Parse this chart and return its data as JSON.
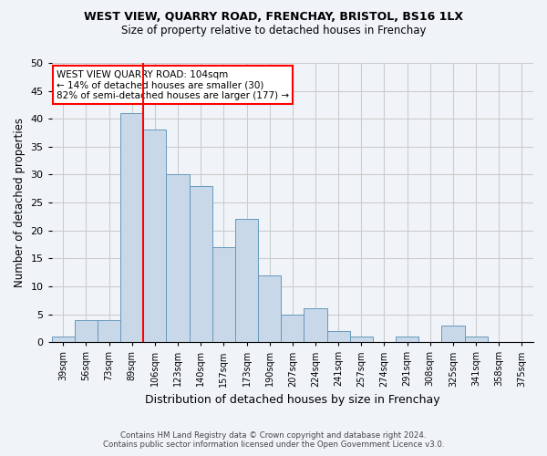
{
  "title": "WEST VIEW, QUARRY ROAD, FRENCHAY, BRISTOL, BS16 1LX",
  "subtitle": "Size of property relative to detached houses in Frenchay",
  "xlabel": "Distribution of detached houses by size in Frenchay",
  "ylabel": "Number of detached properties",
  "footnote1": "Contains HM Land Registry data © Crown copyright and database right 2024.",
  "footnote2": "Contains public sector information licensed under the Open Government Licence v3.0.",
  "bin_labels": [
    "39sqm",
    "56sqm",
    "73sqm",
    "89sqm",
    "106sqm",
    "123sqm",
    "140sqm",
    "157sqm",
    "173sqm",
    "190sqm",
    "207sqm",
    "224sqm",
    "241sqm",
    "257sqm",
    "274sqm",
    "291sqm",
    "308sqm",
    "325sqm",
    "341sqm",
    "358sqm",
    "375sqm"
  ],
  "bar_heights": [
    1,
    4,
    4,
    41,
    38,
    30,
    28,
    17,
    22,
    12,
    5,
    6,
    2,
    1,
    0,
    1,
    0,
    3,
    1,
    0,
    0
  ],
  "bar_color": "#c8d8e8",
  "bar_edge_color": "#6699bb",
  "grid_color": "#cccccc",
  "background_color": "#f0f4f8",
  "vline_x_index": 4,
  "vline_color": "red",
  "annotation_text": "WEST VIEW QUARRY ROAD: 104sqm\n← 14% of detached houses are smaller (30)\n82% of semi-detached houses are larger (177) →",
  "annotation_box_color": "white",
  "annotation_box_edge": "red",
  "ylim": [
    0,
    50
  ],
  "yticks": [
    0,
    5,
    10,
    15,
    20,
    25,
    30,
    35,
    40,
    45,
    50
  ]
}
